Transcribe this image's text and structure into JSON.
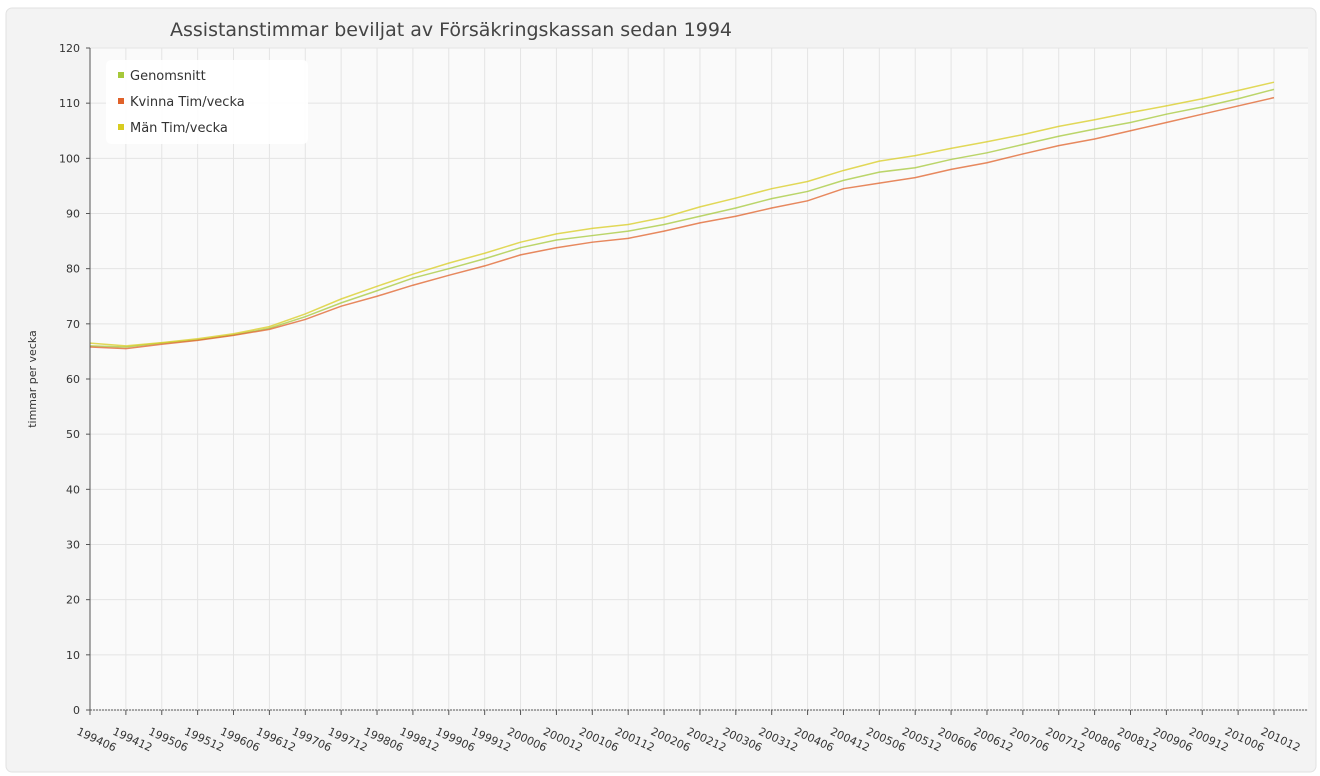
{
  "chart_data": {
    "type": "line",
    "title": "Assistanstimmar beviljat av Försäkringskassan sedan 1994",
    "y_label": "timmar per vecka",
    "categories": [
      "199406",
      "199412",
      "199506",
      "199512",
      "199606",
      "199612",
      "199706",
      "199712",
      "199806",
      "199812",
      "199906",
      "199912",
      "200006",
      "200012",
      "200106",
      "200112",
      "200206",
      "200212",
      "200306",
      "200312",
      "200406",
      "200412",
      "200506",
      "200512",
      "200606",
      "200612",
      "200706",
      "200712",
      "200806",
      "200812",
      "200906",
      "200912",
      "201006",
      "201012"
    ],
    "series": [
      {
        "name": "Genomsnitt",
        "color": "#a6c83a",
        "values": [
          66,
          65.8,
          66.5,
          67.1,
          68,
          69.2,
          71.3,
          73.8,
          76,
          78.3,
          80,
          81.8,
          83.8,
          85.2,
          86,
          86.8,
          88,
          89.5,
          91,
          92.7,
          94,
          96,
          97.5,
          98.3,
          99.8,
          101,
          102.5,
          104,
          105.3,
          106.5,
          108,
          109.3,
          110.8,
          112.5
        ]
      },
      {
        "name": "Kvinna Tim/vecka",
        "color": "#e0622a",
        "values": [
          65.8,
          65.5,
          66.3,
          67,
          67.9,
          69,
          70.8,
          73.2,
          75,
          77,
          78.8,
          80.5,
          82.5,
          83.8,
          84.8,
          85.5,
          86.8,
          88.3,
          89.5,
          91,
          92.3,
          94.5,
          95.5,
          96.5,
          98,
          99.2,
          100.8,
          102.3,
          103.5,
          105,
          106.5,
          108,
          109.5,
          111
        ]
      },
      {
        "name": "Män Tim/vecka",
        "color": "#d8cc20",
        "values": [
          66.5,
          66,
          66.6,
          67.3,
          68.2,
          69.5,
          71.8,
          74.5,
          76.8,
          79,
          81,
          82.8,
          84.8,
          86.3,
          87.3,
          88,
          89.3,
          91.2,
          92.8,
          94.5,
          95.8,
          97.8,
          99.5,
          100.5,
          101.8,
          103,
          104.3,
          105.8,
          107,
          108.3,
          109.5,
          110.8,
          112.3,
          113.8
        ]
      }
    ],
    "ylim": [
      0,
      120
    ],
    "yticks": [
      0,
      10,
      20,
      30,
      40,
      50,
      60,
      70,
      80,
      90,
      100,
      110,
      120
    ],
    "grid": true,
    "legend": "top-left"
  }
}
